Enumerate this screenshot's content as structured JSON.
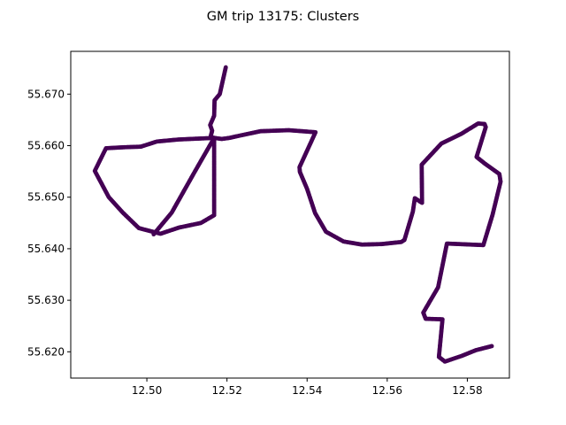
{
  "chart_data": {
    "type": "scatter",
    "title": "GM trip 13175: Clusters",
    "xlabel": "",
    "ylabel": "",
    "xlim": [
      12.481,
      12.5905
    ],
    "ylim": [
      55.6149,
      55.6783
    ],
    "x_ticks": [
      12.5,
      12.52,
      12.54,
      12.56,
      12.58
    ],
    "x_tick_labels": [
      "12.50",
      "12.52",
      "12.54",
      "12.56",
      "12.58"
    ],
    "y_ticks": [
      55.62,
      55.63,
      55.64,
      55.65,
      55.66,
      55.67
    ],
    "y_tick_labels": [
      "55.620",
      "55.630",
      "55.640",
      "55.650",
      "55.660",
      "55.670"
    ],
    "grid": false,
    "legend": "none",
    "point_color": "#440154",
    "series": [
      {
        "x": [
          12.5197,
          12.5182,
          12.5169,
          12.5168,
          12.5158,
          12.5163,
          12.5159,
          12.5168,
          12.5187,
          12.5206,
          12.5235,
          12.5284,
          12.5354,
          12.5421,
          12.5381,
          12.5382,
          12.54,
          12.542,
          12.5447,
          12.5491,
          12.5537,
          12.5586,
          12.5635,
          12.5643,
          12.5664,
          12.5669,
          12.5687,
          12.5686,
          12.5735,
          12.5785,
          12.5827,
          12.5843,
          12.5846,
          12.5823,
          12.5844,
          12.588,
          12.5883,
          12.5863,
          12.584,
          12.5749,
          12.5727,
          12.569,
          12.5696,
          12.5738,
          12.5729,
          12.5744,
          12.5786,
          12.5821,
          12.5861
        ],
        "y": [
          55.6752,
          55.67,
          55.6688,
          55.6658,
          55.664,
          55.6629,
          55.6617,
          55.6615,
          55.6613,
          55.6615,
          55.662,
          55.6628,
          55.663,
          55.6626,
          55.6558,
          55.6549,
          55.6516,
          55.6469,
          55.6433,
          55.6414,
          55.6408,
          55.6409,
          55.6413,
          55.6417,
          55.6472,
          55.6498,
          55.6489,
          55.6563,
          55.6604,
          55.6623,
          55.6643,
          55.6642,
          55.6636,
          55.6578,
          55.6565,
          55.6545,
          55.653,
          55.6466,
          55.6407,
          55.641,
          55.6325,
          55.6276,
          55.6264,
          55.6263,
          55.619,
          55.6181,
          55.6192,
          55.6203,
          55.6211
        ]
      },
      {
        "x": [
          12.5168,
          12.508,
          12.5025,
          12.4985,
          12.4946,
          12.4898,
          12.487,
          12.4905,
          12.494,
          12.498,
          12.5034,
          12.508,
          12.5135,
          12.5168,
          12.5168,
          12.512,
          12.5062,
          12.5017
        ],
        "y": [
          55.6615,
          55.6612,
          55.6608,
          55.6598,
          55.6597,
          55.6595,
          55.6551,
          55.65,
          55.647,
          55.644,
          55.6429,
          55.6441,
          55.645,
          55.6465,
          55.6615,
          55.655,
          55.647,
          55.6428
        ]
      }
    ]
  }
}
